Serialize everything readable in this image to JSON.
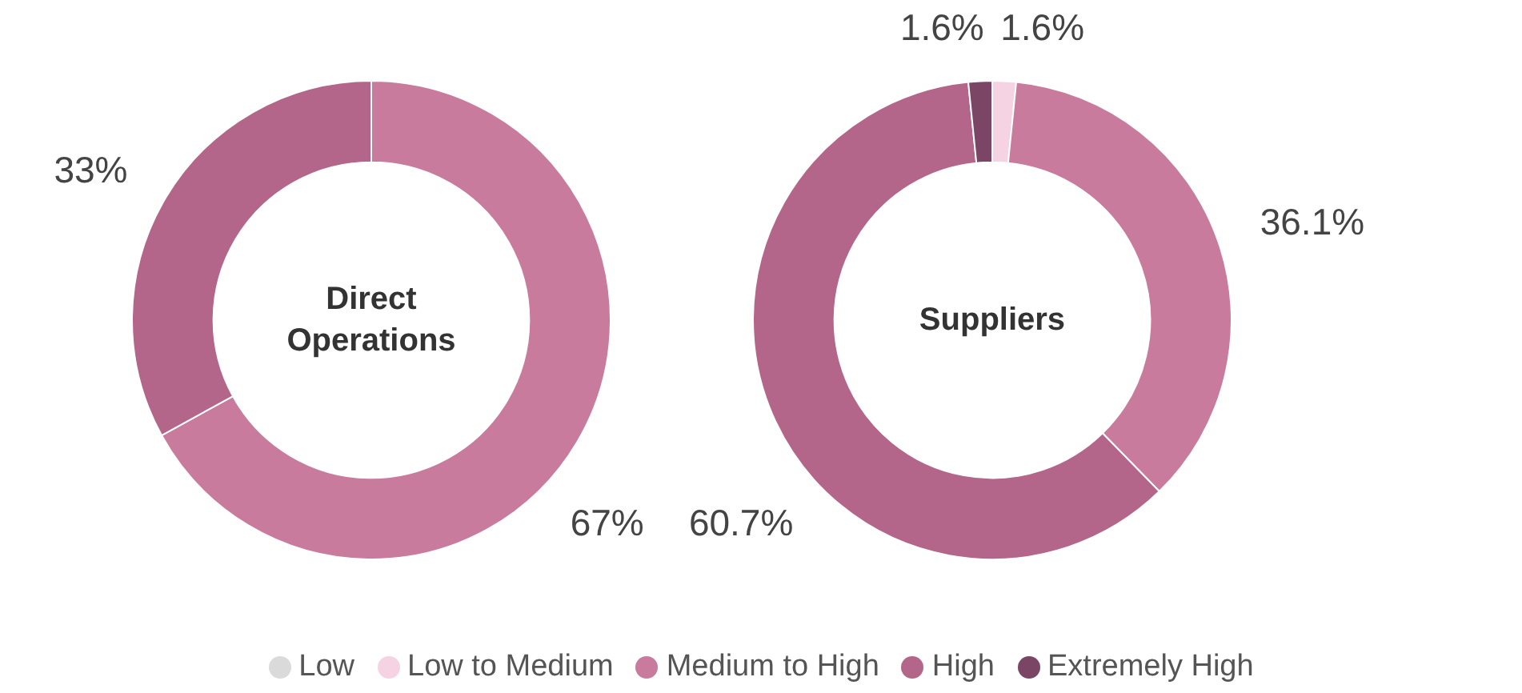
{
  "chart_data": [
    {
      "type": "donut",
      "title": "Direct Operations",
      "categories": [
        "Low",
        "Low to Medium",
        "Medium to High",
        "High",
        "Extremely High"
      ],
      "values": [
        0,
        0,
        67,
        33,
        0
      ],
      "colors": [
        "#dadada",
        "#f6d3e3",
        "#c87b9c",
        "#b3668a",
        "#7b4566"
      ],
      "value_labels": [
        null,
        null,
        "67%",
        "33%",
        null
      ],
      "legend": "bottom"
    },
    {
      "type": "donut",
      "title": "Suppliers",
      "categories": [
        null,
        null,
        null,
        null,
        null
      ],
      "values": [
        0,
        1.6,
        36.1,
        60.7,
        1.6
      ],
      "colors": [
        "#dadada",
        "#f6d3e3",
        "#c87b9c",
        "#b3668a",
        "#7b4566"
      ],
      "value_labels": [
        null,
        "1.6%",
        "36.1%",
        "60.7%",
        "1.6%"
      ]
    }
  ]
}
